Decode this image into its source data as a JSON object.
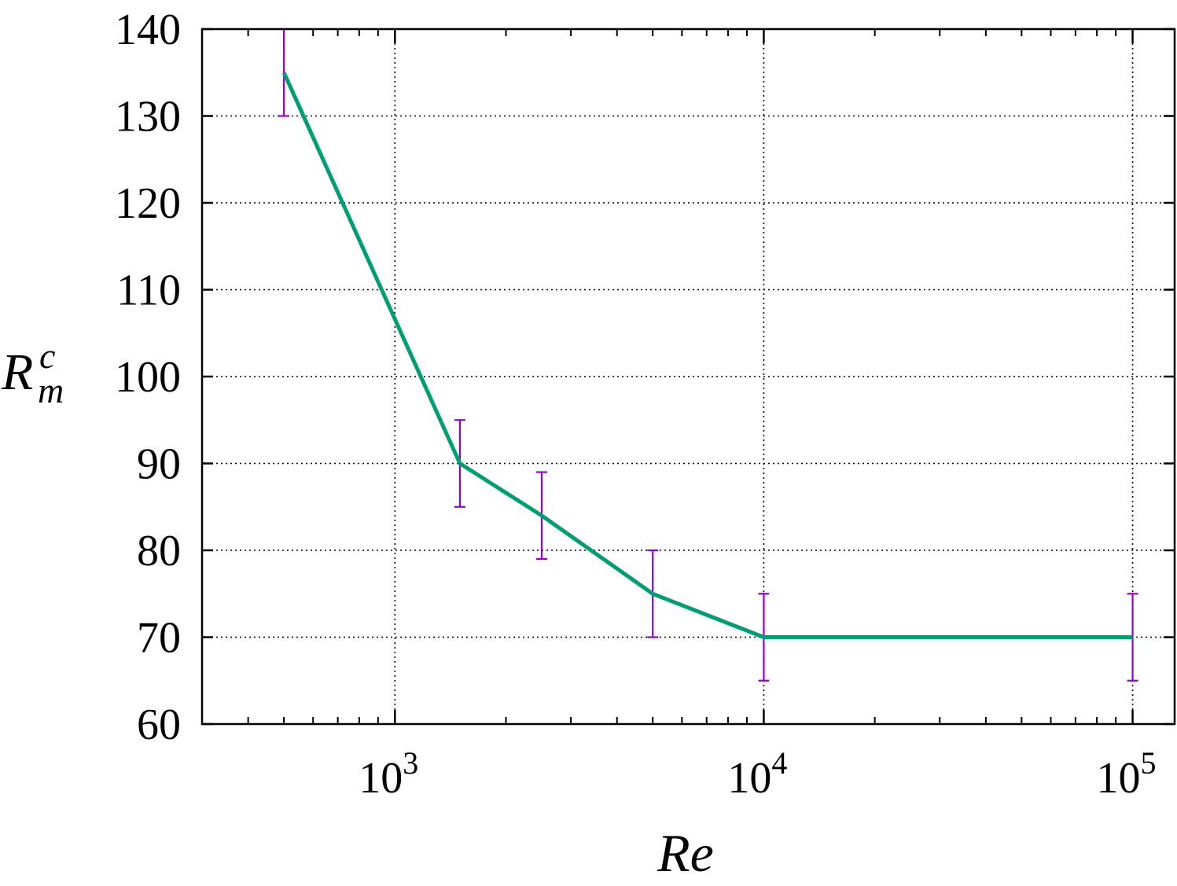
{
  "chart_data": {
    "type": "line",
    "title": "",
    "xlabel": "Re",
    "ylabel": {
      "main": "R",
      "superscript": "c",
      "subscript": "m"
    },
    "x_scale": "log",
    "xlim": [
      300,
      130000
    ],
    "ylim": [
      60,
      140
    ],
    "grid": true,
    "y_ticks": [
      60,
      70,
      80,
      90,
      100,
      110,
      120,
      130,
      140
    ],
    "x_ticks": [
      {
        "value": 1000,
        "base": "10",
        "exp": "3"
      },
      {
        "value": 10000,
        "base": "10",
        "exp": "4"
      },
      {
        "value": 100000,
        "base": "10",
        "exp": "5"
      }
    ],
    "series": [
      {
        "line_color": "#009e73",
        "errorbar_color": "#9400d3",
        "points": [
          {
            "x": 500,
            "y": 135,
            "err": 5
          },
          {
            "x": 1500,
            "y": 90,
            "err": 5
          },
          {
            "x": 2500,
            "y": 84,
            "err": 5
          },
          {
            "x": 5000,
            "y": 75,
            "err": 5
          },
          {
            "x": 10000,
            "y": 70,
            "err": 5
          },
          {
            "x": 100000,
            "y": 70,
            "err": 5
          }
        ]
      }
    ]
  }
}
